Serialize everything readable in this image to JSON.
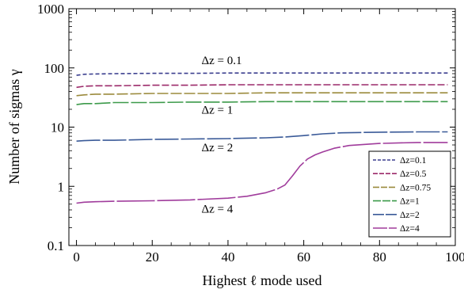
{
  "chart_data": {
    "type": "line",
    "title": "",
    "xlabel": "Highest ℓ mode used",
    "ylabel": "Number of sigmas γ",
    "xlim": [
      -2,
      100
    ],
    "ylim": [
      0.1,
      1000
    ],
    "yscale": "log",
    "xticks": [
      0,
      20,
      40,
      60,
      80,
      100
    ],
    "xtick_labels": [
      "0",
      "20",
      "40",
      "60",
      "80",
      "100"
    ],
    "yticks": [
      0.1,
      1,
      10,
      100,
      1000
    ],
    "ytick_labels": [
      "0.1",
      "1",
      "10",
      "100",
      "1000"
    ],
    "grid": false,
    "legend_position": "bottom-right",
    "series": [
      {
        "name": "Δz=0.1",
        "color": "#3b3f8f",
        "dash": "5,3",
        "x": [
          0,
          2,
          5,
          10,
          20,
          30,
          40,
          50,
          60,
          70,
          80,
          90,
          98
        ],
        "y": [
          75,
          78,
          79,
          80,
          81,
          81,
          82,
          82,
          82,
          82,
          82,
          82,
          82
        ]
      },
      {
        "name": "Δz=0.5",
        "color": "#9c2a6a",
        "dash": "9,3",
        "x": [
          0,
          2,
          5,
          10,
          20,
          30,
          40,
          50,
          60,
          70,
          80,
          90,
          98
        ],
        "y": [
          47,
          49,
          50,
          50,
          51,
          51,
          52,
          52,
          52,
          52,
          52,
          52,
          52
        ]
      },
      {
        "name": "Δz=0.75",
        "color": "#9b8a3c",
        "dash": "14,3",
        "x": [
          0,
          2,
          5,
          10,
          20,
          30,
          40,
          50,
          60,
          70,
          80,
          90,
          98
        ],
        "y": [
          34,
          35,
          36,
          36,
          37,
          37,
          37,
          38,
          38,
          38,
          38,
          38,
          38
        ]
      },
      {
        "name": "Δz=1",
        "color": "#3c9a4a",
        "dash": "20,3",
        "x": [
          0,
          2,
          5,
          10,
          20,
          30,
          40,
          50,
          60,
          70,
          80,
          90,
          98
        ],
        "y": [
          24,
          25,
          25,
          26,
          26,
          26.5,
          26.5,
          27,
          27,
          27,
          27,
          27,
          27
        ]
      },
      {
        "name": "Δz=2",
        "color": "#3a5a98",
        "dash": "30,3",
        "x": [
          0,
          2,
          5,
          10,
          20,
          30,
          40,
          50,
          55,
          60,
          65,
          70,
          80,
          90,
          98
        ],
        "y": [
          5.8,
          5.9,
          6.0,
          6.0,
          6.2,
          6.3,
          6.4,
          6.6,
          6.8,
          7.2,
          7.7,
          8.0,
          8.2,
          8.3,
          8.3
        ]
      },
      {
        "name": "Δz=4",
        "color": "#a03c9c",
        "dash": "48,3",
        "x": [
          0,
          2,
          5,
          10,
          20,
          30,
          40,
          45,
          50,
          53,
          55,
          57,
          59,
          61,
          63,
          65,
          68,
          72,
          80,
          90,
          98
        ],
        "y": [
          0.52,
          0.54,
          0.55,
          0.56,
          0.57,
          0.59,
          0.63,
          0.68,
          0.78,
          0.9,
          1.05,
          1.5,
          2.2,
          2.9,
          3.4,
          3.8,
          4.4,
          4.9,
          5.3,
          5.5,
          5.5
        ]
      }
    ],
    "annotations": [
      {
        "text": "Δz = 0.1",
        "x": 33,
        "y": 115
      },
      {
        "text": "Δz = 1",
        "x": 33,
        "y": 17
      },
      {
        "text": "Δz = 2",
        "x": 33,
        "y": 3.9
      },
      {
        "text": "Δz = 4",
        "x": 33,
        "y": 0.36
      }
    ]
  }
}
